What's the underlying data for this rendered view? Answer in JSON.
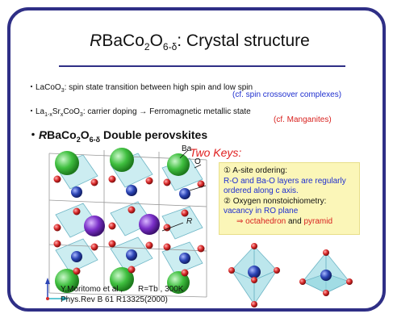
{
  "title": {
    "prefix": "R",
    "main": "BaCo",
    "sub": "2",
    "o": "O",
    "osub": "6-δ",
    "suffix": ": Crystal structure"
  },
  "bullets": {
    "lacoo3_formula": "LaCoO",
    "lacoo3_sub": "3",
    "lacoo3_text": ":   spin state transition between high spin and low spin",
    "lacoo3_note": "(cf. spin crossover complexes)",
    "lasr_a": "La",
    "lasr_sub1": "1-x",
    "lasr_b": "Sr",
    "lasr_sub2": "x",
    "lasr_c": "CoO",
    "lasr_sub3": "3",
    "lasr_text": ": carrier doping  →  Ferromagnetic metallic state",
    "lasr_note": "(cf. Manganites)",
    "bullet_mark": "・"
  },
  "section": {
    "r": "R",
    "a": "BaCo",
    "s1": "2",
    "b": "O",
    "s2": "6-δ",
    "rest": " Double perovskites"
  },
  "crystal_labels": {
    "ba": "Ba",
    "o": "O",
    "r": "R"
  },
  "keys": {
    "heading": "Two Keys:",
    "k1_title": "① A-site ordering:",
    "k1_body_1": "R-O and Ba-O layers are regularly",
    "k1_body_2": "ordered along c axis.",
    "k2_title": "② Oxygen nonstoichiometry:",
    "k2_body": "vacancy in RO plane",
    "k2_arrow": "⇒",
    "k2_oct": "octahedron",
    "k2_and": "and",
    "k2_pyr": "pyramid"
  },
  "credit": {
    "line1": "Y.Moritomo et al ,",
    "line2": "Phys.Rev B 61 R13325(2000)",
    "rtb": "R=Tb , 300K"
  },
  "colors": {
    "frame": "#2f2f86",
    "blue_text": "#1f2fcf",
    "red_text": "#d8221f",
    "box": "#fbf6b8",
    "ba_sphere": "#3fbf3f",
    "r_sphere": "#7a2fc8",
    "co_sphere": "#2c45b5",
    "o_sphere": "#d92a2a",
    "polyhedron": "#8fd6e0"
  }
}
